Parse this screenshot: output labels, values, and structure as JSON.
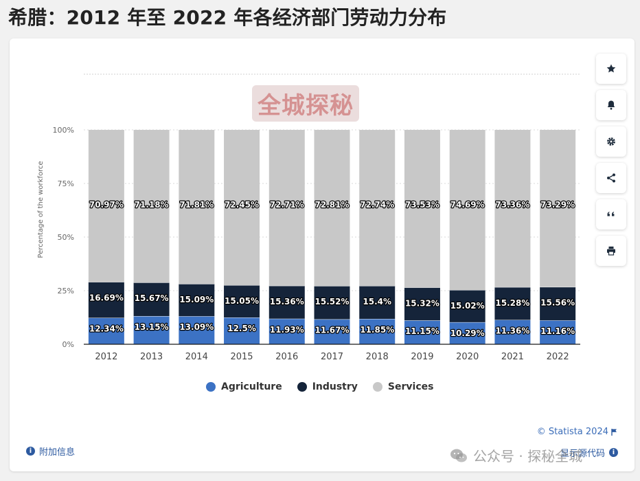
{
  "page_title": "希腊：2012 年至 2022 年各经济部门劳动力分布",
  "watermark": "全城探秘",
  "toolbar": {
    "icons": [
      "star-icon",
      "bell-icon",
      "gear-icon",
      "share-icon",
      "quote-icon",
      "print-icon"
    ]
  },
  "footer": {
    "credit": "© Statista 2024",
    "additional_info": "附加信息",
    "show_source": "显示源代码",
    "wechat_text": "公众号 · 探秘全城"
  },
  "colors": {
    "agriculture": "#3c72c4",
    "industry": "#15243a",
    "services": "#c8c8c8"
  },
  "chart_data": {
    "type": "bar",
    "stacked": true,
    "ylabel": "Percentage of the workforce",
    "ylim": [
      0,
      100
    ],
    "y_ticks": [
      "0%",
      "25%",
      "50%",
      "75%",
      "100%"
    ],
    "grid": true,
    "legend_position": "bottom",
    "categories": [
      "2012",
      "2013",
      "2014",
      "2015",
      "2016",
      "2017",
      "2018",
      "2019",
      "2020",
      "2021",
      "2022"
    ],
    "series": [
      {
        "name": "Agriculture",
        "values": [
          12.34,
          13.15,
          13.09,
          12.5,
          11.93,
          11.67,
          11.85,
          11.15,
          10.29,
          11.36,
          11.16
        ],
        "labels": [
          "12.34%",
          "13.15%",
          "13.09%",
          "12.5%",
          "11.93%",
          "11.67%",
          "11.85%",
          "11.15%",
          "10.29%",
          "11.36%",
          "11.16%"
        ]
      },
      {
        "name": "Industry",
        "values": [
          16.69,
          15.67,
          15.09,
          15.05,
          15.36,
          15.52,
          15.4,
          15.32,
          15.02,
          15.28,
          15.56
        ],
        "labels": [
          "16.69%",
          "15.67%",
          "15.09%",
          "15.05%",
          "15.36%",
          "15.52%",
          "15.4%",
          "15.32%",
          "15.02%",
          "15.28%",
          "15.56%"
        ]
      },
      {
        "name": "Services",
        "values": [
          70.97,
          71.18,
          71.81,
          72.45,
          72.71,
          72.81,
          72.74,
          73.53,
          74.69,
          73.36,
          73.29
        ],
        "labels": [
          "70.97%",
          "71.18%",
          "71.81%",
          "72.45%",
          "72.71%",
          "72.81%",
          "72.74%",
          "73.53%",
          "74.69%",
          "73.36%",
          "73.29%"
        ]
      }
    ]
  }
}
